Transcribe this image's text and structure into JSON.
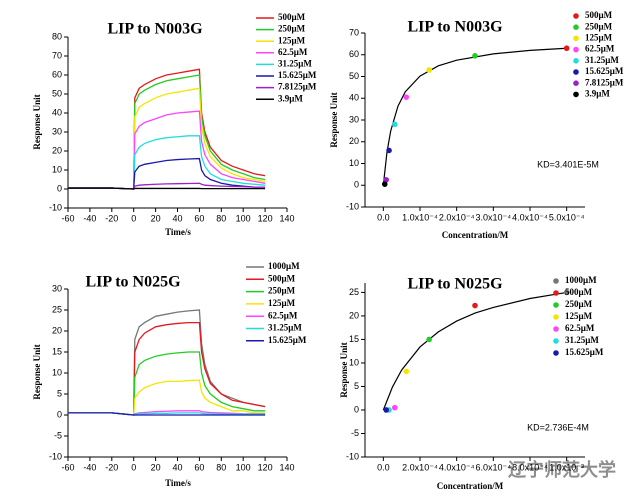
{
  "chart_data": [
    {
      "type": "line",
      "title": "LIP to N003G",
      "xlabel": "Time/s",
      "ylabel": "Response Unit",
      "xlim": [
        -60,
        140
      ],
      "ylim": [
        -10,
        80
      ],
      "xticks": [
        -60,
        -40,
        -20,
        0,
        20,
        40,
        60,
        80,
        100,
        120,
        140
      ],
      "yticks": [
        -10,
        0,
        10,
        20,
        30,
        40,
        50,
        60,
        70,
        80
      ],
      "x": [
        -60,
        -20,
        0,
        1,
        5,
        10,
        20,
        30,
        40,
        50,
        60,
        62,
        65,
        70,
        80,
        90,
        100,
        110,
        120
      ],
      "series": [
        {
          "name": "500μM",
          "color": "#e31a1c",
          "values": [
            0.5,
            0.5,
            0,
            48,
            53,
            55,
            58,
            60,
            61,
            62,
            63,
            40,
            30,
            22,
            15,
            12,
            10,
            8,
            7
          ]
        },
        {
          "name": "250μM",
          "color": "#22cc22",
          "values": [
            0.5,
            0.5,
            0,
            45,
            50,
            52,
            55,
            57,
            58,
            59,
            60,
            38,
            28,
            20,
            13,
            10,
            8,
            6,
            5
          ]
        },
        {
          "name": "125μM",
          "color": "#f2e600",
          "values": [
            0.5,
            0.5,
            0,
            38,
            43,
            45,
            48,
            50,
            51,
            52,
            53,
            33,
            24,
            17,
            11,
            8,
            6,
            5,
            4
          ]
        },
        {
          "name": "62.5μM",
          "color": "#ff44ff",
          "values": [
            0.5,
            0.5,
            0,
            29,
            33,
            35,
            37,
            39,
            40,
            40.5,
            41,
            25,
            18,
            13,
            8,
            6,
            5,
            4,
            3
          ]
        },
        {
          "name": "31.25μM",
          "color": "#22dddd",
          "values": [
            0.5,
            0.5,
            0,
            18,
            22,
            24,
            26,
            27,
            27.5,
            28,
            28,
            17,
            12,
            8,
            5,
            4,
            3,
            2.5,
            2
          ]
        },
        {
          "name": "15.625μM",
          "color": "#1a1aaa",
          "values": [
            0.5,
            0.5,
            0,
            9,
            12,
            13,
            14,
            15,
            15.5,
            15.8,
            16,
            10,
            7,
            5,
            3,
            2,
            1.5,
            1,
            1
          ]
        },
        {
          "name": "7.8125μM",
          "color": "#9922cc",
          "values": [
            0.5,
            0.5,
            0,
            1.5,
            2,
            2.2,
            2.5,
            2.7,
            2.8,
            2.9,
            3,
            2.5,
            2,
            1.8,
            1.5,
            1.3,
            1.2,
            1,
            1
          ]
        },
        {
          "name": "3.9μM",
          "color": "#000000",
          "values": [
            0.5,
            0.5,
            0,
            0.3,
            0.3,
            0.3,
            0.3,
            0.3,
            0.3,
            0.3,
            0.3,
            0.2,
            0.2,
            0.2,
            0.2,
            0.2,
            0.2,
            0.2,
            0.2
          ]
        }
      ]
    },
    {
      "type": "scatter",
      "title": "LIP to N003G",
      "xlabel": "Concentration/M",
      "ylabel": "Response Unit",
      "annotation": "KD=3.401E-5M",
      "xlim": [
        -5e-05,
        0.00055
      ],
      "ylim": [
        -10,
        70
      ],
      "xticks": [
        {
          "value": 0,
          "label": "0.0"
        },
        {
          "value": 0.0001,
          "label": "1.0x10⁻⁴"
        },
        {
          "value": 0.0002,
          "label": "2.0x10⁻⁴"
        },
        {
          "value": 0.0003,
          "label": "3.0x10⁻⁴"
        },
        {
          "value": 0.0004,
          "label": "4.0x10⁻⁴"
        },
        {
          "value": 0.0005,
          "label": "5.0x10⁻⁴"
        }
      ],
      "yticks": [
        -10,
        0,
        10,
        20,
        30,
        40,
        50,
        60,
        70
      ],
      "series": [
        {
          "name": "500μM",
          "color": "#e31a1c",
          "x": [
            0.0005
          ],
          "values": [
            63
          ]
        },
        {
          "name": "250μM",
          "color": "#22cc22",
          "x": [
            0.00025
          ],
          "values": [
            59.5
          ]
        },
        {
          "name": "125μM",
          "color": "#f2e600",
          "x": [
            0.000125
          ],
          "values": [
            53
          ]
        },
        {
          "name": "62.5μM",
          "color": "#ff44ff",
          "x": [
            6.25e-05
          ],
          "values": [
            40.5
          ]
        },
        {
          "name": "31.25μM",
          "color": "#22dddd",
          "x": [
            3.125e-05
          ],
          "values": [
            28
          ]
        },
        {
          "name": "15.625μM",
          "color": "#1a1aaa",
          "x": [
            1.5625e-05
          ],
          "values": [
            16
          ]
        },
        {
          "name": "7.8125μM",
          "color": "#9922cc",
          "x": [
            7.8125e-06
          ],
          "values": [
            2.5
          ]
        },
        {
          "name": "3.9μM",
          "color": "#000000",
          "x": [
            3.9e-06
          ],
          "values": [
            0.5
          ]
        }
      ],
      "fit": {
        "color": "#000000",
        "x": [
          0,
          1e-05,
          2e-05,
          4e-05,
          6e-05,
          0.0001,
          0.00015,
          0.0002,
          0.0003,
          0.0004,
          0.0005
        ],
        "values": [
          0,
          15.3,
          24.9,
          36.4,
          43.0,
          50.2,
          54.9,
          57.5,
          60.4,
          62.0,
          63.0
        ]
      }
    },
    {
      "type": "line",
      "title": "LIP to N025G",
      "xlabel": "Time/s",
      "ylabel": "Response Unit",
      "xlim": [
        -60,
        140
      ],
      "ylim": [
        -10,
        30
      ],
      "xticks": [
        -60,
        -40,
        -20,
        0,
        20,
        40,
        60,
        80,
        100,
        120,
        140
      ],
      "yticks": [
        -10,
        -5,
        0,
        5,
        10,
        15,
        20,
        25,
        30
      ],
      "x": [
        -60,
        -20,
        0,
        1,
        5,
        10,
        20,
        30,
        40,
        50,
        60,
        62,
        65,
        70,
        80,
        90,
        100,
        110,
        120
      ],
      "series": [
        {
          "name": "1000μM",
          "color": "#777777",
          "values": [
            0.5,
            0.5,
            0,
            18,
            21,
            22,
            23.5,
            24,
            24.5,
            24.8,
            25,
            17,
            12,
            8,
            5,
            4,
            3,
            2.5,
            2
          ]
        },
        {
          "name": "500μM",
          "color": "#e31a1c",
          "values": [
            0.5,
            0.5,
            0,
            15,
            18,
            19.5,
            21,
            21.5,
            21.8,
            22,
            22,
            15,
            11,
            7.5,
            5,
            3.5,
            3,
            2.5,
            2
          ]
        },
        {
          "name": "250μM",
          "color": "#22cc22",
          "values": [
            0.5,
            0.5,
            0,
            9,
            12,
            13,
            14,
            14.5,
            14.8,
            15,
            15,
            10,
            7,
            5,
            3,
            2,
            1.5,
            1,
            1
          ]
        },
        {
          "name": "125μM",
          "color": "#f2e600",
          "values": [
            0.5,
            0.5,
            0,
            4,
            5.5,
            6.5,
            7.5,
            8,
            8,
            8.2,
            8.3,
            5.5,
            4,
            3,
            2,
            1,
            1,
            0.5,
            0.5
          ]
        },
        {
          "name": "62.5μM",
          "color": "#ff44ff",
          "values": [
            0.5,
            0.5,
            0,
            0.3,
            0.5,
            0.6,
            0.8,
            0.9,
            1,
            1,
            1,
            0.8,
            0.7,
            0.6,
            0.5,
            0.4,
            0.3,
            0.3,
            0.3
          ]
        },
        {
          "name": "31.25μM",
          "color": "#22dddd",
          "values": [
            0.5,
            0.5,
            0,
            0.2,
            0.3,
            0.3,
            0.4,
            0.4,
            0.5,
            0.5,
            0.5,
            0.4,
            0.3,
            0.3,
            0.2,
            0.2,
            0.2,
            0.2,
            0.2
          ]
        },
        {
          "name": "15.625μM",
          "color": "#1a1aaa",
          "values": [
            0.5,
            0.5,
            0,
            0,
            0,
            0,
            0,
            0,
            0,
            0,
            0,
            0,
            0,
            0,
            0,
            0,
            0,
            0,
            0
          ]
        }
      ]
    },
    {
      "type": "scatter",
      "title": "LIP to N025G",
      "xlabel": "Concentration/M",
      "ylabel": "Response Unit",
      "annotation": "KD=2.736E-4M",
      "xlim": [
        -0.0001,
        0.0011
      ],
      "ylim": [
        -10,
        27
      ],
      "xticks": [
        {
          "value": 0,
          "label": "0.0"
        },
        {
          "value": 0.0002,
          "label": "2.0x10⁻⁴"
        },
        {
          "value": 0.0004,
          "label": "4.0x10⁻⁴"
        },
        {
          "value": 0.0006,
          "label": "6.0x10⁻⁴"
        },
        {
          "value": 0.0008,
          "label": "8.0x10⁻⁴"
        },
        {
          "value": 0.001,
          "label": "1.0x10⁻³"
        }
      ],
      "yticks": [
        -10,
        -5,
        0,
        5,
        10,
        15,
        20,
        25
      ],
      "series": [
        {
          "name": "1000μM",
          "color": "#777777",
          "x": [
            0.001
          ],
          "values": [
            25
          ]
        },
        {
          "name": "500μM",
          "color": "#e31a1c",
          "x": [
            0.0005
          ],
          "values": [
            22.2
          ]
        },
        {
          "name": "250μM",
          "color": "#22cc22",
          "x": [
            0.00025
          ],
          "values": [
            15
          ]
        },
        {
          "name": "125μM",
          "color": "#f2e600",
          "x": [
            0.000125
          ],
          "values": [
            8.2
          ]
        },
        {
          "name": "62.5μM",
          "color": "#ff44ff",
          "x": [
            6.25e-05
          ],
          "values": [
            0.5
          ]
        },
        {
          "name": "31.25μM",
          "color": "#22dddd",
          "x": [
            3.125e-05
          ],
          "values": [
            0
          ]
        },
        {
          "name": "15.625μM",
          "color": "#1a1aaa",
          "x": [
            1.5625e-05
          ],
          "values": [
            0
          ]
        }
      ],
      "fit": {
        "color": "#000000",
        "x": [
          0,
          5e-05,
          0.0001,
          0.0002,
          0.0003,
          0.0004,
          0.0005,
          0.0006,
          0.0008,
          0.001
        ],
        "values": [
          0,
          4.9,
          8.5,
          13.4,
          16.6,
          18.9,
          20.6,
          21.8,
          23.7,
          25.0
        ]
      }
    }
  ],
  "watermark": "辽宁师范大学"
}
